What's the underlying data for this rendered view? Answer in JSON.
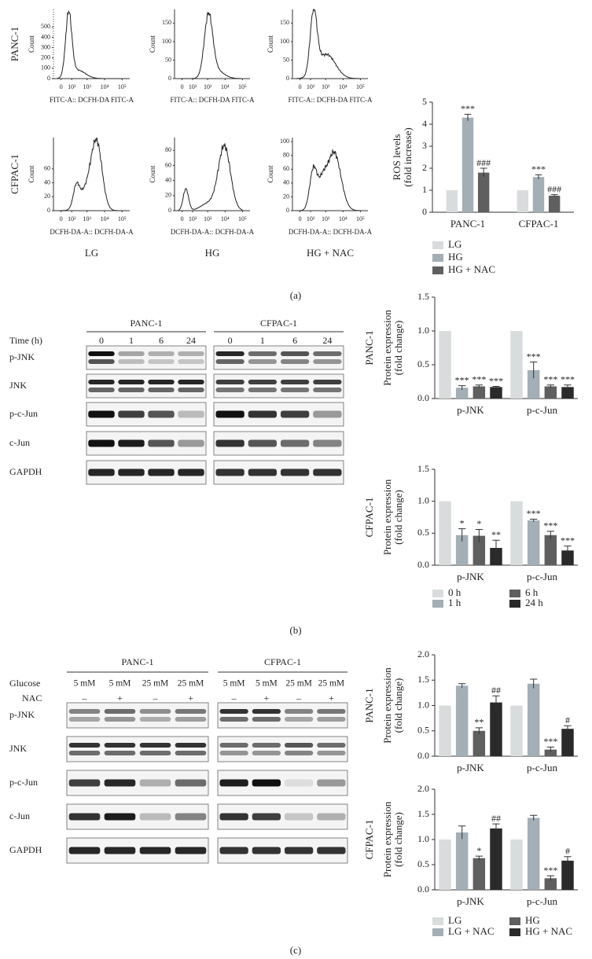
{
  "panel_labels": [
    "(a)",
    "(b)",
    "(c)"
  ],
  "flow": {
    "row_labels": [
      "PANC-1",
      "CFPAC-1"
    ],
    "column_labels": [
      "LG",
      "HG",
      "HG + NAC"
    ],
    "plots": [
      {
        "y_label": "Count",
        "x_label": "FITC-A:: DCFH-DA FITC-A",
        "ylim": [
          0,
          670
        ],
        "yticks": [
          0,
          100,
          200,
          300,
          400,
          500
        ],
        "xticks": [
          "0",
          "10²",
          "10³",
          "10⁴",
          "10⁵"
        ]
      },
      {
        "y_label": "Count",
        "x_label": "FITC-A:: DCFH-DA FITC-A",
        "ylim": [
          0,
          187
        ],
        "yticks": [
          0,
          50,
          100,
          150
        ],
        "xticks": [
          "0",
          "10²",
          "10³",
          "10⁴",
          "10⁵"
        ]
      },
      {
        "y_label": "Count",
        "x_label": "FITC-A:: DCFH-DA FITC-A",
        "ylim": [
          0,
          187
        ],
        "yticks": [
          0,
          50,
          100,
          150
        ],
        "xticks": [
          "0",
          "10²",
          "10³",
          "10⁴",
          "10⁵"
        ]
      },
      {
        "y_label": "Count",
        "x_label": "DCFH-DA-A:: DCFH-DA-A",
        "ylim": [
          0,
          105
        ],
        "yticks": [
          0,
          20,
          40,
          60
        ],
        "xticks": [
          "0",
          "10²",
          "10³",
          "10⁴",
          "10⁵"
        ]
      },
      {
        "y_label": "Count",
        "x_label": "DCFH-DA-A:: DCFH-DA-A",
        "ylim": [
          0,
          97
        ],
        "yticks": [
          0,
          20,
          40,
          60,
          80
        ],
        "xticks": [
          "0",
          "10²",
          "10³",
          "10⁴",
          "10⁵"
        ]
      },
      {
        "y_label": "Count",
        "x_label": "DCFH-DA-A:: DCFH-DA-A",
        "ylim": [
          0,
          106
        ],
        "yticks": [
          0,
          20,
          40,
          60,
          80,
          100
        ],
        "xticks": [
          "0",
          "10²",
          "10³",
          "10⁴",
          "10⁵"
        ]
      }
    ]
  },
  "blots": {
    "b": {
      "headers": [
        "PANC-1",
        "CFPAC-1"
      ],
      "lane_label": "Time (h)",
      "lanes": [
        "0",
        "1",
        "6",
        "24"
      ],
      "rows": [
        "p-JNK",
        "JNK",
        "p-c-Jun",
        "c-Jun",
        "GAPDH"
      ]
    },
    "c": {
      "headers": [
        "PANC-1",
        "CFPAC-1"
      ],
      "glucose_label": "Glucose",
      "glucose": [
        "5 mM",
        "5 mM",
        "25 mM",
        "25 mM"
      ],
      "nac_label": "NAC",
      "nac": [
        "–",
        "+",
        "–",
        "+"
      ],
      "rows": [
        "p-JNK",
        "JNK",
        "p-c-Jun",
        "c-Jun",
        "GAPDH"
      ]
    }
  },
  "chart_data": [
    {
      "type": "bar",
      "y_label": [
        "ROS levels",
        "(fold increase)"
      ],
      "categories": [
        "PANC-1",
        "CFPAC-1"
      ],
      "ylim": [
        0,
        5
      ],
      "yticks": [
        0,
        1,
        2,
        3,
        4,
        5
      ],
      "series": [
        {
          "name": "LG",
          "color": "#d9dcdc",
          "values": [
            1,
            1
          ]
        },
        {
          "name": "HG",
          "color": "#a3aeb5",
          "values": [
            4.3,
            1.6
          ],
          "errors": [
            0.15,
            0.1
          ],
          "annotations": [
            "***",
            "***"
          ]
        },
        {
          "name": "HG + NAC",
          "color": "#5f5f5f",
          "values": [
            1.8,
            0.75
          ],
          "errors": [
            0.2,
            0.05
          ],
          "annotations": [
            "###",
            "###"
          ]
        }
      ]
    },
    {
      "type": "bar",
      "row_label": "PANC-1",
      "y_label": [
        "Protein expression",
        "(fold change)"
      ],
      "categories": [
        "p-JNK",
        "p-c-Jun"
      ],
      "ylim": [
        0,
        1.5
      ],
      "yticks": [
        {
          "value": 0,
          "label": "0.0"
        },
        {
          "value": 0.5,
          "label": "0.5"
        },
        {
          "value": 1,
          "label": "1.0"
        },
        {
          "value": 1.5,
          "label": "1.5"
        }
      ],
      "series": [
        {
          "color": "#d9dcdc",
          "values": [
            1,
            1
          ]
        },
        {
          "color": "#a3aeb5",
          "values": [
            0.16,
            0.42
          ],
          "errors": [
            0.03,
            0.12
          ],
          "annotations": [
            "***",
            "***"
          ]
        },
        {
          "color": "#5f5f5f",
          "values": [
            0.18,
            0.18
          ],
          "errors": [
            0.02,
            0.02
          ],
          "annotations": [
            "***",
            "***"
          ]
        },
        {
          "color": "#2a2a2a",
          "values": [
            0.17,
            0.17
          ],
          "errors": [
            0.01,
            0.03
          ],
          "annotations": [
            "***",
            "***"
          ]
        }
      ]
    },
    {
      "type": "bar",
      "row_label": "CFPAC-1",
      "y_label": [
        "Protein expression",
        "(fold change)"
      ],
      "categories": [
        "p-JNK",
        "p-c-Jun"
      ],
      "ylim": [
        0,
        1.5
      ],
      "yticks": [
        {
          "value": 0,
          "label": "0.0"
        },
        {
          "value": 0.5,
          "label": "0.5"
        },
        {
          "value": 1,
          "label": "1.0"
        },
        {
          "value": 1.5,
          "label": "1.5"
        }
      ],
      "series": [
        {
          "name": "0 h",
          "color": "#d9dcdc",
          "values": [
            1,
            1
          ]
        },
        {
          "name": "1 h",
          "color": "#a3aeb5",
          "values": [
            0.47,
            0.7
          ],
          "errors": [
            0.1,
            0.02
          ],
          "annotations": [
            "*",
            "***"
          ]
        },
        {
          "name": "6 h",
          "color": "#5f5f5f",
          "values": [
            0.46,
            0.47
          ],
          "errors": [
            0.1,
            0.06
          ],
          "annotations": [
            "*",
            "***"
          ]
        },
        {
          "name": "24 h",
          "color": "#2a2a2a",
          "values": [
            0.27,
            0.23
          ],
          "errors": [
            0.12,
            0.07
          ],
          "annotations": [
            "**",
            "***"
          ]
        }
      ]
    },
    {
      "type": "bar",
      "row_label": "PANC-1",
      "y_label": [
        "Protein expression",
        "(fold change)"
      ],
      "categories": [
        "p-JNK",
        "p-c-Jun"
      ],
      "ylim": [
        0,
        2
      ],
      "yticks": [
        {
          "value": 0,
          "label": "0.0"
        },
        {
          "value": 0.5,
          "label": "0.5"
        },
        {
          "value": 1,
          "label": "1.0"
        },
        {
          "value": 1.5,
          "label": "1.5"
        },
        {
          "value": 2,
          "label": "2.0"
        }
      ],
      "series": [
        {
          "color": "#d9dcdc",
          "values": [
            1,
            1
          ]
        },
        {
          "color": "#a3aeb5",
          "values": [
            1.39,
            1.43
          ],
          "errors": [
            0.04,
            0.09
          ]
        },
        {
          "color": "#5f5f5f",
          "values": [
            0.5,
            0.13
          ],
          "errors": [
            0.06,
            0.05
          ],
          "annotations": [
            "**",
            "***"
          ]
        },
        {
          "color": "#2a2a2a",
          "values": [
            1.06,
            0.54
          ],
          "errors": [
            0.13,
            0.06
          ],
          "annotations": [
            "##",
            "#"
          ]
        }
      ]
    },
    {
      "type": "bar",
      "row_label": "CFPAC-1",
      "y_label": [
        "Protein expression",
        "(fold change)"
      ],
      "categories": [
        "p-JNK",
        "p-c-Jun"
      ],
      "ylim": [
        0,
        2
      ],
      "yticks": [
        {
          "value": 0,
          "label": "0.0"
        },
        {
          "value": 0.5,
          "label": "0.5"
        },
        {
          "value": 1,
          "label": "1.0"
        },
        {
          "value": 1.5,
          "label": "1.5"
        },
        {
          "value": 2,
          "label": "2.0"
        }
      ],
      "series": [
        {
          "name": "LG",
          "color": "#d9dcdc",
          "values": [
            1,
            1
          ]
        },
        {
          "name": "LG + NAC",
          "color": "#a3aeb5",
          "values": [
            1.14,
            1.43
          ],
          "errors": [
            0.13,
            0.05
          ]
        },
        {
          "name": "HG",
          "color": "#5f5f5f",
          "values": [
            0.63,
            0.23
          ],
          "errors": [
            0.04,
            0.05
          ],
          "annotations": [
            "*",
            "***"
          ]
        },
        {
          "name": "HG + NAC",
          "color": "#2a2a2a",
          "values": [
            1.22,
            0.58
          ],
          "errors": [
            0.09,
            0.08
          ],
          "annotations": [
            "##",
            "#"
          ]
        }
      ]
    }
  ]
}
